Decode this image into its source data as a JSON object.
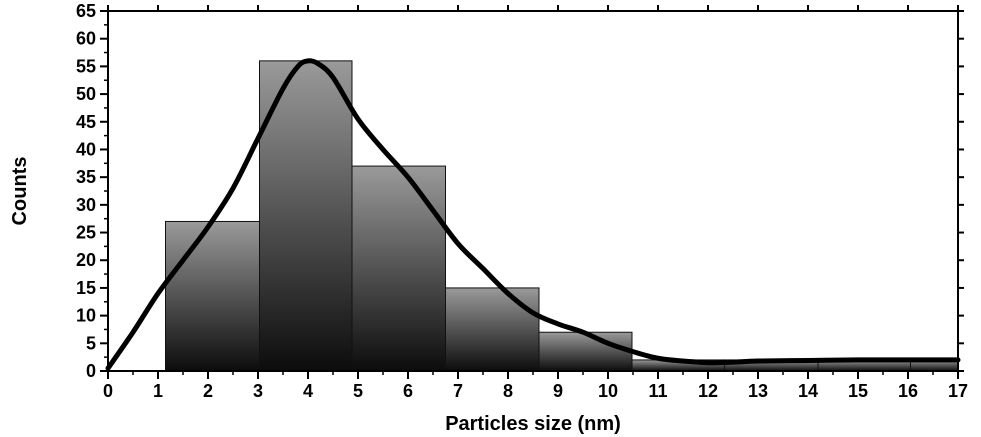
{
  "chart_data": {
    "type": "bar",
    "title": "",
    "xlabel": "Particles size (nm)",
    "ylabel": "Counts",
    "xlim": [
      0,
      17
    ],
    "ylim": [
      0,
      65
    ],
    "x_ticks": [
      0,
      1,
      2,
      3,
      4,
      5,
      6,
      7,
      8,
      9,
      10,
      11,
      12,
      13,
      14,
      15,
      16,
      17
    ],
    "y_ticks": [
      0,
      5,
      10,
      15,
      20,
      25,
      30,
      35,
      40,
      45,
      50,
      55,
      60,
      65
    ],
    "bin_edges": [
      1.15,
      3.03,
      4.88,
      6.75,
      8.62,
      10.48,
      12.33,
      14.2,
      16.05,
      17
    ],
    "values": [
      27,
      56,
      37,
      15,
      7,
      2,
      2,
      2,
      2
    ],
    "fit_curve": {
      "type": "line",
      "x": [
        0,
        0.5,
        1,
        1.5,
        2,
        2.5,
        3,
        3.5,
        3.8,
        4,
        4.2,
        4.5,
        5,
        5.5,
        6,
        6.5,
        7,
        7.5,
        8,
        8.5,
        9,
        9.5,
        10,
        10.5,
        11,
        11.5,
        12,
        12.5,
        13,
        14,
        15,
        16,
        17
      ],
      "y": [
        0.5,
        7,
        14,
        20,
        26,
        33,
        42,
        51,
        55,
        56,
        55.5,
        53,
        45.5,
        40,
        35,
        29,
        23,
        18.5,
        14,
        10.5,
        8.5,
        7,
        5,
        3.5,
        2.3,
        1.8,
        1.5,
        1.6,
        1.8,
        1.9,
        2,
        2,
        2
      ]
    },
    "colors": {
      "bar_top": "#9a9a9a",
      "bar_bottom": "#0c0c0c",
      "bar_edge": "#111111",
      "curve": "#000000",
      "axis": "#000000"
    },
    "grid": false,
    "legend": "none"
  }
}
